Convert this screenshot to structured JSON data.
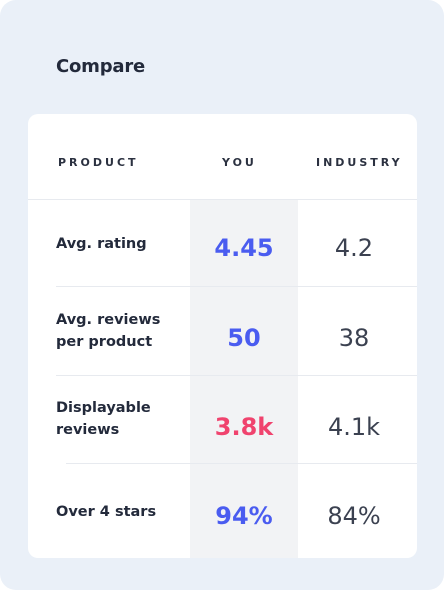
{
  "title": "Compare",
  "columns": {
    "product": "PRODUCT",
    "you": "YOU",
    "industry": "INDUSTRY"
  },
  "rows": [
    {
      "label": "Avg. rating",
      "you": "4.45",
      "industry": "4.2",
      "you_status": "positive"
    },
    {
      "label": "Avg. reviews per product",
      "you": "50",
      "industry": "38",
      "you_status": "positive"
    },
    {
      "label": "Displayable reviews",
      "you": "3.8k",
      "industry": "4.1k",
      "you_status": "negative"
    },
    {
      "label": "Over 4 stars",
      "you": "94%",
      "industry": "84%",
      "you_status": "positive"
    }
  ],
  "colors": {
    "positive": "#4a5cf0",
    "negative": "#f0436e",
    "background": "#eaf0f8",
    "card": "#ffffff",
    "you_column": "#f2f3f5"
  }
}
